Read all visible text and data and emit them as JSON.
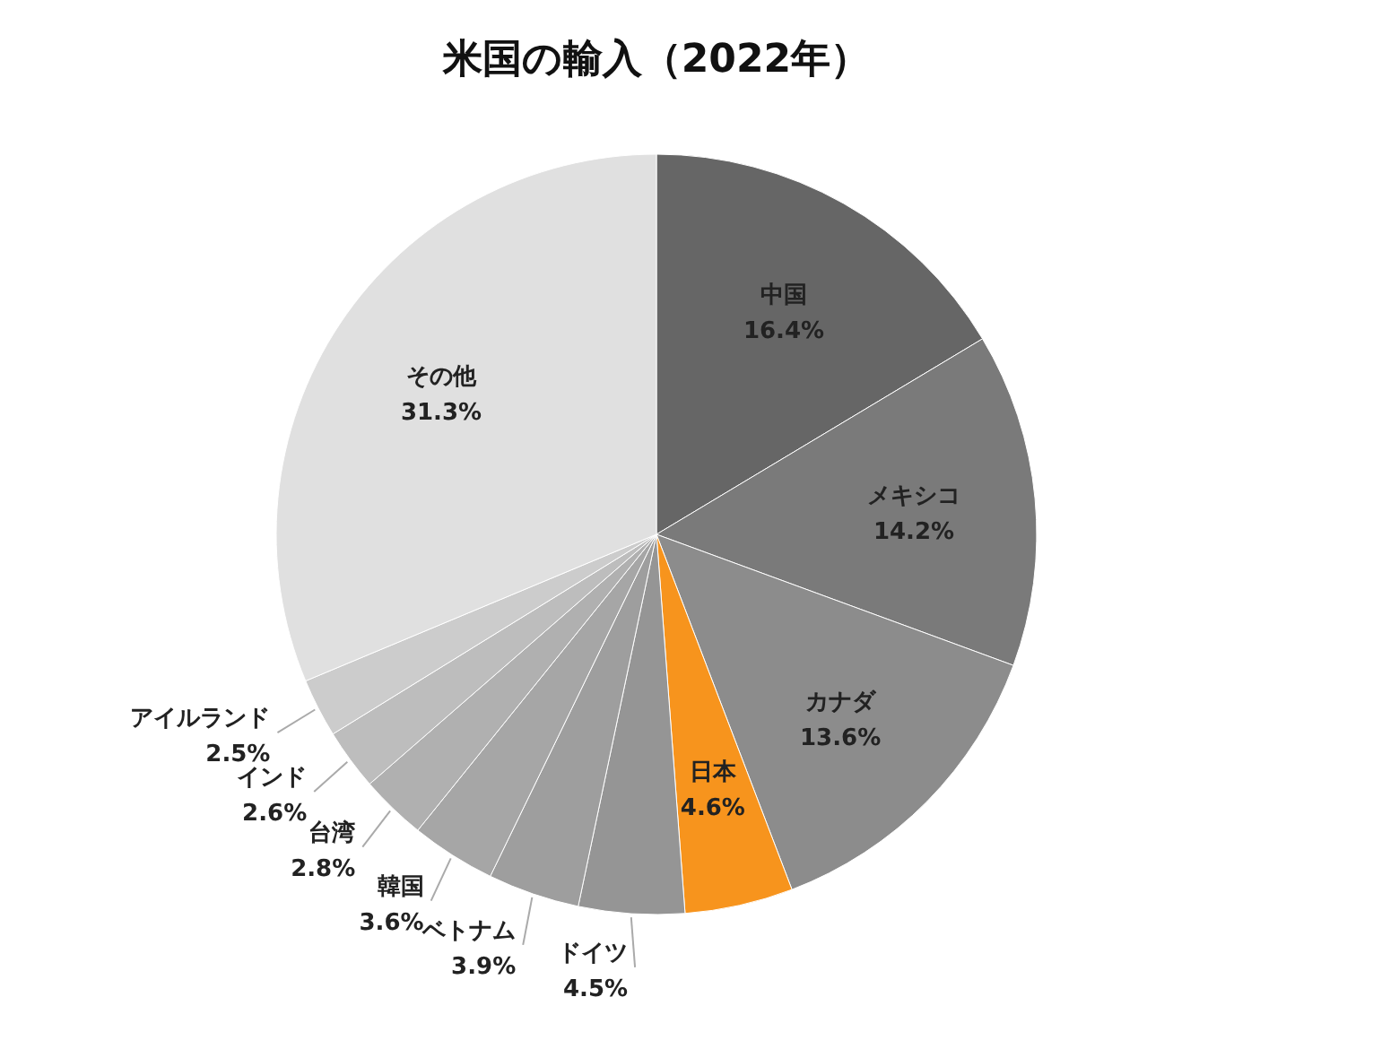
{
  "chart_data": {
    "type": "pie",
    "title": "米国の輸入（2022年）",
    "categories": [
      "中国",
      "メキシコ",
      "カナダ",
      "日本",
      "ドイツ",
      "ベトナム",
      "韓国",
      "台湾",
      "インド",
      "アイルランド",
      "その他"
    ],
    "values": [
      16.4,
      14.2,
      13.6,
      4.6,
      4.5,
      3.9,
      3.6,
      2.8,
      2.6,
      2.5,
      31.3
    ],
    "colors": [
      "#666666",
      "#7a7a7a",
      "#8c8c8c",
      "#f7941d",
      "#959595",
      "#9e9e9e",
      "#a6a6a6",
      "#b0b0b0",
      "#bdbdbd",
      "#cccccc",
      "#e0e0e0"
    ],
    "value_labels": [
      "16.4%",
      "14.2%",
      "13.6%",
      "4.6%",
      "4.5%",
      "3.9%",
      "3.6%",
      "2.8%",
      "2.6%",
      "2.5%",
      "31.3%"
    ]
  }
}
